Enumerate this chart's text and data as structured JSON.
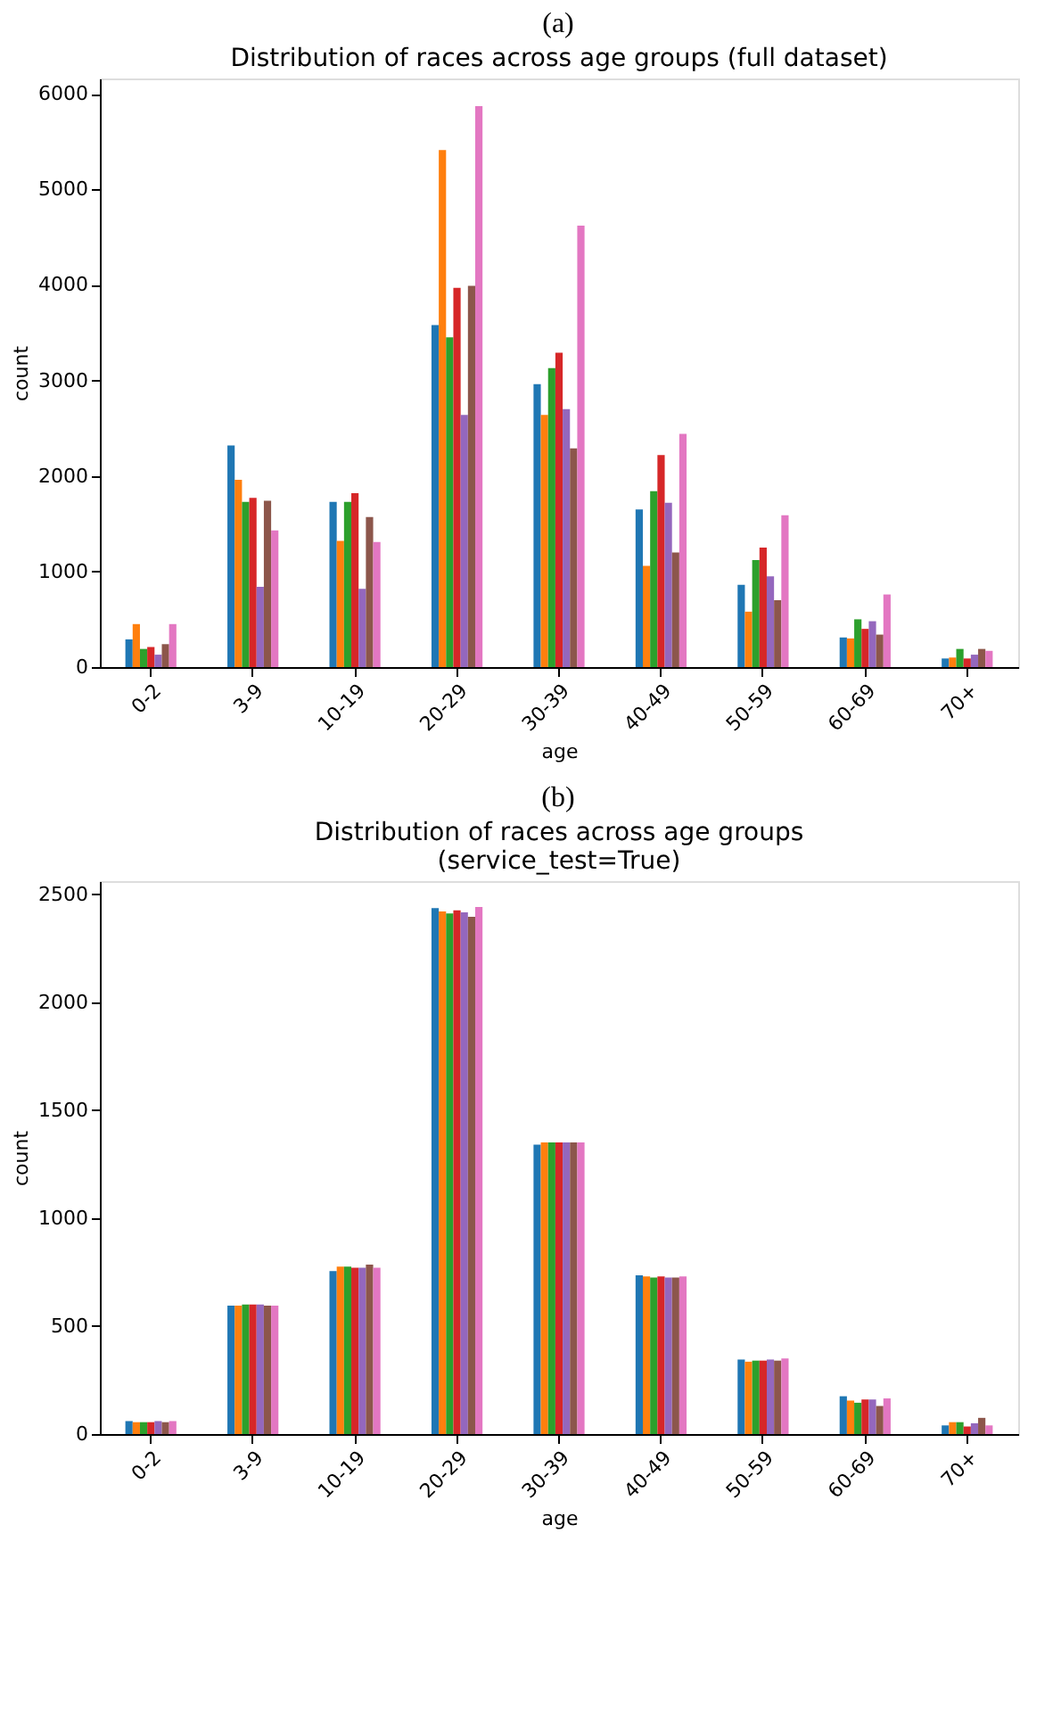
{
  "chart_data": [
    {
      "type": "bar",
      "annotations": [
        "(a)"
      ],
      "title": "Distribution of races across age groups (full dataset)",
      "xlabel": "age",
      "ylabel": "count",
      "categories": [
        "0-2",
        "3-9",
        "10-19",
        "20-29",
        "30-39",
        "40-49",
        "50-59",
        "60-69",
        "70+"
      ],
      "ylim": [
        0,
        6160
      ],
      "yticks": [
        0,
        1000,
        2000,
        3000,
        4000,
        5000,
        6000
      ],
      "grid": false,
      "legend": false,
      "series": [
        {
          "color": "#1f77b4",
          "values": [
            290,
            2320,
            1730,
            3580,
            2960,
            1650,
            860,
            310,
            90
          ]
        },
        {
          "color": "#ff7f0e",
          "values": [
            450,
            1960,
            1320,
            5410,
            2640,
            1060,
            580,
            300,
            100
          ]
        },
        {
          "color": "#2ca02c",
          "values": [
            190,
            1730,
            1730,
            3450,
            3130,
            1840,
            1120,
            500,
            190
          ]
        },
        {
          "color": "#d62728",
          "values": [
            210,
            1770,
            1820,
            3970,
            3290,
            2220,
            1250,
            400,
            90
          ]
        },
        {
          "color": "#9467bd",
          "values": [
            130,
            840,
            820,
            2640,
            2700,
            1720,
            950,
            480,
            130
          ]
        },
        {
          "color": "#8c564b",
          "values": [
            240,
            1740,
            1570,
            3990,
            2290,
            1200,
            700,
            340,
            190
          ]
        },
        {
          "color": "#e377c2",
          "values": [
            450,
            1430,
            1310,
            5870,
            4620,
            2440,
            1590,
            760,
            170
          ]
        }
      ]
    },
    {
      "type": "bar",
      "annotations": [
        "(b)"
      ],
      "title": "Distribution of races across age groups\n(service_test=True)",
      "xlabel": "age",
      "ylabel": "count",
      "categories": [
        "0-2",
        "3-9",
        "10-19",
        "20-29",
        "30-39",
        "40-49",
        "50-59",
        "60-69",
        "70+"
      ],
      "ylim": [
        0,
        2560
      ],
      "yticks": [
        0,
        500,
        1000,
        1500,
        2000,
        2500
      ],
      "grid": false,
      "legend": false,
      "series": [
        {
          "color": "#1f77b4",
          "values": [
            60,
            595,
            755,
            2435,
            1340,
            735,
            345,
            175,
            40
          ]
        },
        {
          "color": "#ff7f0e",
          "values": [
            55,
            595,
            775,
            2420,
            1350,
            730,
            335,
            155,
            55
          ]
        },
        {
          "color": "#2ca02c",
          "values": [
            55,
            600,
            775,
            2410,
            1350,
            725,
            340,
            145,
            55
          ]
        },
        {
          "color": "#d62728",
          "values": [
            55,
            600,
            770,
            2425,
            1350,
            730,
            340,
            160,
            35
          ]
        },
        {
          "color": "#9467bd",
          "values": [
            60,
            600,
            770,
            2415,
            1350,
            725,
            345,
            160,
            50
          ]
        },
        {
          "color": "#8c564b",
          "values": [
            55,
            595,
            785,
            2395,
            1350,
            725,
            340,
            130,
            75
          ]
        },
        {
          "color": "#e377c2",
          "values": [
            60,
            595,
            770,
            2440,
            1350,
            730,
            350,
            165,
            40
          ]
        }
      ]
    }
  ]
}
